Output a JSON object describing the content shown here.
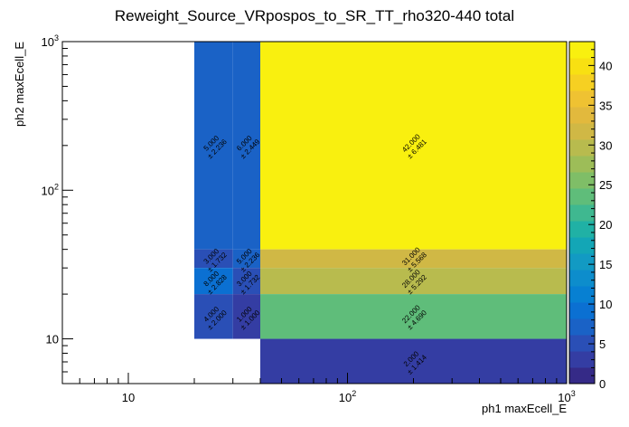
{
  "chart_data": {
    "type": "heatmap",
    "title": "Reweight_Source_VRpospos_to_SR_TT_rho320-440 total",
    "xlabel": "ph1 maxEcell_E",
    "ylabel": "ph2 maxEcell_E",
    "x_scale": "log",
    "y_scale": "log",
    "xlim": [
      5,
      1000
    ],
    "ylim": [
      5,
      1000
    ],
    "z_range": [
      0,
      43
    ],
    "x_major_ticks": [
      {
        "value": 10,
        "base": "10",
        "exp": ""
      },
      {
        "value": 100,
        "base": "10",
        "exp": "2"
      },
      {
        "value": 1000,
        "base": "10",
        "exp": "3"
      }
    ],
    "y_major_ticks": [
      {
        "value": 10,
        "base": "10",
        "exp": ""
      },
      {
        "value": 100,
        "base": "10",
        "exp": "2"
      },
      {
        "value": 1000,
        "base": "10",
        "exp": "3"
      }
    ],
    "palette_ticks": [
      "0",
      "5",
      "10",
      "15",
      "20",
      "25",
      "30",
      "35",
      "40"
    ],
    "palette_tick_values": [
      0,
      5,
      10,
      15,
      20,
      25,
      30,
      35,
      40
    ],
    "palette_colors": [
      "#352a87",
      "#343da3",
      "#2a4fb6",
      "#1a62c6",
      "#0b70d2",
      "#0780d2",
      "#0d8dcc",
      "#129ac3",
      "#13a6b6",
      "#20b1a5",
      "#3fb890",
      "#5fbd7a",
      "#7fbe67",
      "#9dbd58",
      "#b8bb4e",
      "#d0b845",
      "#e2b93d",
      "#efc232",
      "#f6d022",
      "#f8e012",
      "#f9f00f"
    ],
    "cells": [
      {
        "x0": 20,
        "x1": 30,
        "y0": 40,
        "y1": 1000,
        "value": 5,
        "text": "5.000",
        "err": "± 2.236",
        "color": "#1a62c6"
      },
      {
        "x0": 30,
        "x1": 40,
        "y0": 40,
        "y1": 1000,
        "value": 6,
        "text": "6.000",
        "err": "± 2.449",
        "color": "#1a62c6"
      },
      {
        "x0": 40,
        "x1": 1000,
        "y0": 40,
        "y1": 1000,
        "value": 42,
        "text": "42.000",
        "err": "± 6.481",
        "color": "#f9f00f"
      },
      {
        "x0": 20,
        "x1": 30,
        "y0": 30,
        "y1": 40,
        "value": 3,
        "text": "3.000",
        "err": "± 1.732",
        "color": "#2a4fb6"
      },
      {
        "x0": 30,
        "x1": 40,
        "y0": 30,
        "y1": 40,
        "value": 5,
        "text": "5.000",
        "err": "± 2.236",
        "color": "#1a62c6"
      },
      {
        "x0": 40,
        "x1": 1000,
        "y0": 30,
        "y1": 40,
        "value": 31,
        "text": "31.000",
        "err": "± 5.568",
        "color": "#d0b845"
      },
      {
        "x0": 20,
        "x1": 30,
        "y0": 20,
        "y1": 30,
        "value": 8,
        "text": "8.000",
        "err": "± 2.828",
        "color": "#0b70d2"
      },
      {
        "x0": 30,
        "x1": 40,
        "y0": 20,
        "y1": 30,
        "value": 3,
        "text": "3.000",
        "err": "± 1.732",
        "color": "#2a4fb6"
      },
      {
        "x0": 40,
        "x1": 1000,
        "y0": 20,
        "y1": 30,
        "value": 28,
        "text": "28.000",
        "err": "± 5.292",
        "color": "#b8bb4e"
      },
      {
        "x0": 20,
        "x1": 30,
        "y0": 10,
        "y1": 20,
        "value": 4,
        "text": "4.000",
        "err": "± 2.000",
        "color": "#2a4fb6"
      },
      {
        "x0": 30,
        "x1": 40,
        "y0": 10,
        "y1": 20,
        "value": 1,
        "text": "1.000",
        "err": "± 1.000",
        "color": "#343da3"
      },
      {
        "x0": 40,
        "x1": 1000,
        "y0": 10,
        "y1": 20,
        "value": 22,
        "text": "22.000",
        "err": "± 4.690",
        "color": "#5fbd7a"
      },
      {
        "x0": 40,
        "x1": 1000,
        "y0": 5,
        "y1": 10,
        "value": 2,
        "text": "2.000",
        "err": "± 1.414",
        "color": "#343da3"
      }
    ]
  }
}
